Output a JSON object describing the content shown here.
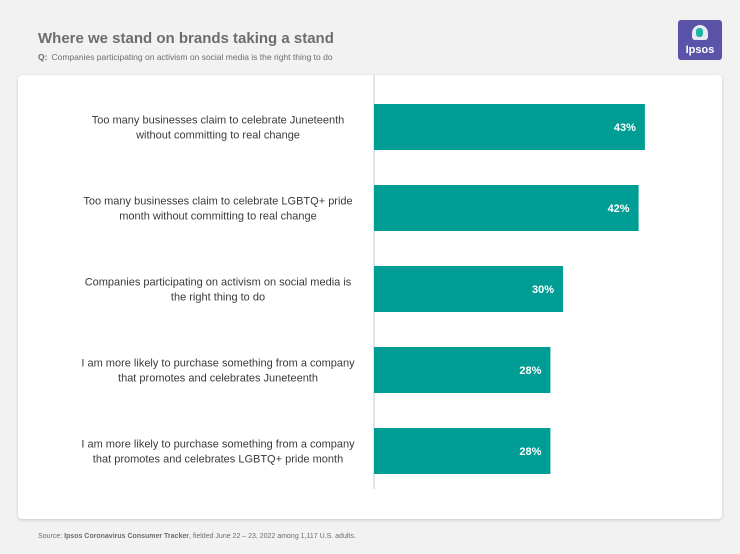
{
  "header": {
    "title": "Where we stand on brands taking a stand",
    "q_label": "Q:",
    "subtitle": "Companies participating on activism on social media is the right thing to do"
  },
  "logo": {
    "text": "Ipsos",
    "icon": "ipsos-logo-icon"
  },
  "colors": {
    "bar": "#009d94",
    "axis": "#c8c8c8",
    "label": "#3a3a3a",
    "value": "#ffffff"
  },
  "chart_data": {
    "type": "bar",
    "orientation": "horizontal",
    "title": "Where we stand on brands taking a stand",
    "xlim": [
      0,
      50
    ],
    "categories": [
      [
        "Too many businesses claim to celebrate Juneteenth",
        "without committing to real change"
      ],
      [
        "Too many businesses claim to celebrate LGBTQ+ pride",
        "month without committing to real change"
      ],
      [
        "Companies participating on activism on social media is",
        "the right thing to do"
      ],
      [
        "I am more likely to purchase something from a company",
        "that promotes and celebrates Juneteenth"
      ],
      [
        "I am more likely to purchase something from a company",
        "that promotes and celebrates LGBTQ+ pride month"
      ]
    ],
    "values": [
      43,
      42,
      30,
      28,
      28
    ],
    "value_labels": [
      "43%",
      "42%",
      "30%",
      "28%",
      "28%"
    ]
  },
  "footer": {
    "prefix": "Source: ",
    "source": "Ipsos Coronavirus Consumer Tracker",
    "suffix": ", fielded June 22 – 23, 2022 among 1,117 U.S. adults."
  }
}
